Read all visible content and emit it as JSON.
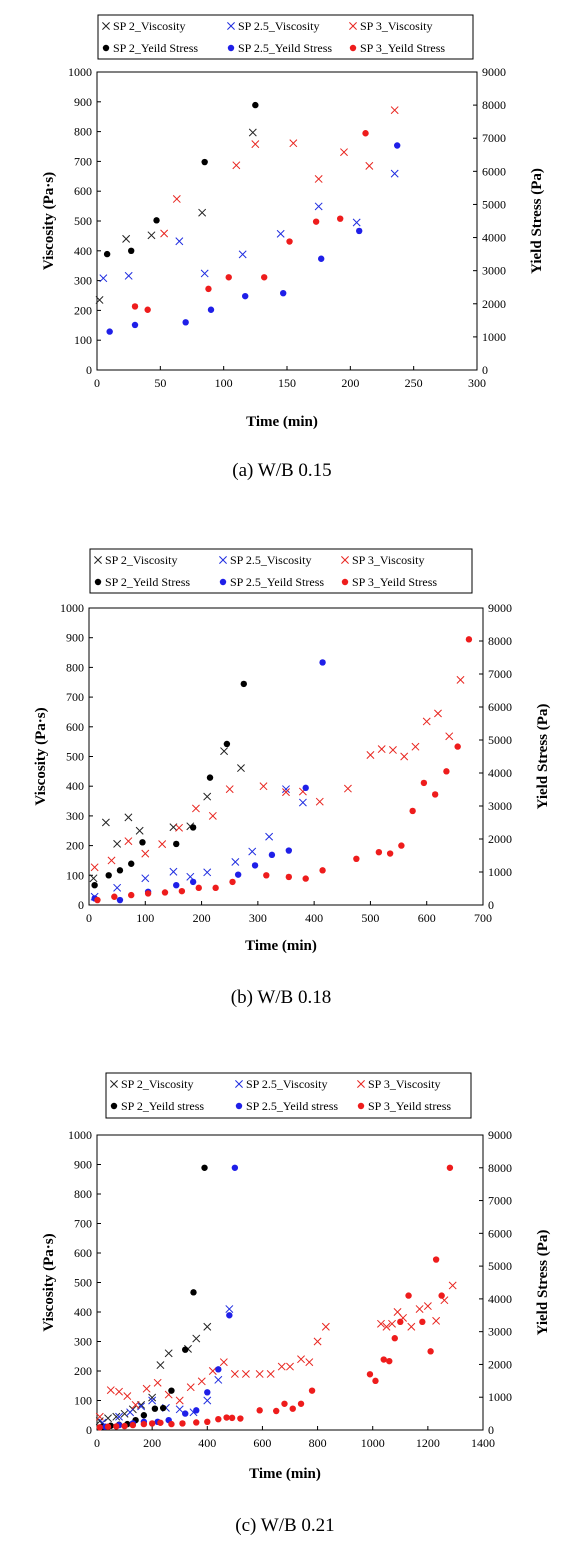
{
  "chart_data": [
    {
      "type": "scatter",
      "caption": "(a) W/B 0.15",
      "xlabel": "Time (min)",
      "ylabel": "Viscosity (Pa·s)",
      "y2label": "Yield Stress (Pa)",
      "xlim": [
        0,
        300
      ],
      "xticks": [
        0,
        50,
        100,
        150,
        200,
        250,
        300
      ],
      "ylim": [
        0,
        1000
      ],
      "yticks": [
        0,
        100,
        200,
        300,
        400,
        500,
        600,
        700,
        800,
        900,
        1000
      ],
      "y2lim": [
        0,
        9000
      ],
      "y2ticks": [
        0,
        1000,
        2000,
        3000,
        4000,
        5000,
        6000,
        7000,
        8000,
        9000
      ],
      "legend": "top",
      "series": [
        {
          "name": "SP 2_Viscosity",
          "marker": "x",
          "color": "#222222",
          "axis": "left",
          "x": [
            2,
            23,
            43,
            83,
            123
          ],
          "y": [
            235,
            440,
            452,
            528,
            797
          ]
        },
        {
          "name": "SP 2.5_Viscosity",
          "marker": "x",
          "color": "#1f2de0",
          "axis": "left",
          "x": [
            5,
            25,
            65,
            85,
            115,
            145,
            175,
            205,
            235
          ],
          "y": [
            308,
            316,
            432,
            324,
            388,
            457,
            549,
            495,
            659
          ]
        },
        {
          "name": "SP 3_Viscosity",
          "marker": "x",
          "color": "#e8251f",
          "axis": "left",
          "x": [
            53,
            63,
            110,
            125,
            155,
            175,
            195,
            215,
            235
          ],
          "y": [
            458,
            574,
            687,
            758,
            761,
            641,
            731,
            685,
            872
          ]
        },
        {
          "name": "SP 2_Yeild Stress",
          "marker": "o",
          "color": "#000000",
          "axis": "right",
          "x": [
            8,
            27,
            47,
            85,
            125
          ],
          "y": [
            3500,
            3600,
            4520,
            6280,
            8000
          ]
        },
        {
          "name": "SP 2.5_Yeild Stress",
          "marker": "o",
          "color": "#1f1fe8",
          "axis": "right",
          "x": [
            10,
            30,
            70,
            90,
            117,
            147,
            177,
            207,
            237
          ],
          "y": [
            1160,
            1360,
            1440,
            1820,
            2230,
            2320,
            3360,
            4200,
            6780
          ]
        },
        {
          "name": "SP 3_Yeild Stress",
          "marker": "o",
          "color": "#ee1c1c",
          "axis": "right",
          "x": [
            30,
            40,
            88,
            104,
            132,
            152,
            173,
            192,
            212
          ],
          "y": [
            1920,
            1820,
            2450,
            2800,
            2800,
            3880,
            4480,
            4570,
            7150
          ]
        }
      ]
    },
    {
      "type": "scatter",
      "caption": "(b) W/B 0.18",
      "xlabel": "Time (min)",
      "ylabel": "Viscosity (Pa·s)",
      "y2label": "Yield Stress (Pa)",
      "xlim": [
        0,
        700
      ],
      "xticks": [
        0,
        100,
        200,
        300,
        400,
        500,
        600,
        700
      ],
      "ylim": [
        0,
        1000
      ],
      "yticks": [
        0,
        100,
        200,
        300,
        400,
        500,
        600,
        700,
        800,
        900,
        1000
      ],
      "y2lim": [
        0,
        9000
      ],
      "y2ticks": [
        0,
        1000,
        2000,
        3000,
        4000,
        5000,
        6000,
        7000,
        8000,
        9000
      ],
      "legend": "top",
      "series": [
        {
          "name": "SP 2_Viscosity",
          "marker": "x",
          "color": "#222222",
          "axis": "left",
          "x": [
            8,
            30,
            50,
            70,
            90,
            150,
            180,
            210,
            240,
            270
          ],
          "y": [
            90,
            278,
            206,
            295,
            250,
            262,
            265,
            365,
            518,
            461
          ]
        },
        {
          "name": "SP 2.5_Viscosity",
          "marker": "x",
          "color": "#1f2de0",
          "axis": "left",
          "x": [
            10,
            50,
            100,
            150,
            180,
            210,
            260,
            290,
            320,
            350,
            380
          ],
          "y": [
            28,
            58,
            90,
            112,
            95,
            110,
            145,
            180,
            230,
            390,
            345
          ]
        },
        {
          "name": "SP 3_Viscosity",
          "marker": "x",
          "color": "#e8251f",
          "axis": "left",
          "x": [
            10,
            40,
            70,
            100,
            130,
            160,
            190,
            220,
            250,
            310,
            350,
            380,
            410,
            460,
            500,
            520,
            540,
            560,
            580,
            600,
            620,
            640,
            660
          ],
          "y": [
            127,
            150,
            215,
            173,
            205,
            260,
            325,
            300,
            390,
            400,
            380,
            382,
            348,
            392,
            505,
            525,
            522,
            500,
            533,
            618,
            645,
            568,
            758
          ]
        },
        {
          "name": "SP 2_Yeild Stress",
          "marker": "o",
          "color": "#000000",
          "axis": "right",
          "x": [
            10,
            35,
            55,
            75,
            95,
            155,
            185,
            215,
            245,
            275
          ],
          "y": [
            600,
            900,
            1050,
            1250,
            1900,
            1850,
            2350,
            3860,
            4880,
            6700
          ]
        },
        {
          "name": "SP 2.5_Yeild Stress",
          "marker": "o",
          "color": "#1f1fe8",
          "axis": "right",
          "x": [
            10,
            55,
            105,
            155,
            185,
            265,
            295,
            325,
            355,
            385,
            415
          ],
          "y": [
            200,
            150,
            400,
            600,
            700,
            920,
            1200,
            1520,
            1650,
            3550,
            7350
          ]
        },
        {
          "name": "SP 3_Yeild Stress",
          "marker": "o",
          "color": "#ee1c1c",
          "axis": "right",
          "x": [
            15,
            45,
            75,
            105,
            135,
            165,
            195,
            225,
            255,
            315,
            355,
            385,
            415,
            475,
            515,
            535,
            555,
            575,
            595,
            615,
            635,
            655,
            675
          ],
          "y": [
            150,
            250,
            300,
            350,
            380,
            420,
            520,
            520,
            700,
            900,
            850,
            800,
            1050,
            1400,
            1600,
            1560,
            1800,
            2850,
            3700,
            3350,
            4050,
            4800,
            8050
          ]
        }
      ]
    },
    {
      "type": "scatter",
      "caption": "(c) W/B 0.21",
      "xlabel": "Time (min)",
      "ylabel": "Viscosity (Pa·s)",
      "y2label": "Yield Stress (Pa)",
      "xlim": [
        0,
        1400
      ],
      "xticks": [
        0,
        200,
        400,
        600,
        800,
        1000,
        1200,
        1400
      ],
      "ylim": [
        0,
        1000
      ],
      "yticks": [
        0,
        100,
        200,
        300,
        400,
        500,
        600,
        700,
        800,
        900,
        1000
      ],
      "y2lim": [
        0,
        9000
      ],
      "y2ticks": [
        0,
        1000,
        2000,
        3000,
        4000,
        5000,
        6000,
        7000,
        8000,
        9000
      ],
      "legend": "top",
      "series": [
        {
          "name": "SP 2_Viscosity",
          "marker": "x",
          "color": "#222222",
          "axis": "left",
          "x": [
            10,
            40,
            70,
            100,
            130,
            160,
            200,
            230,
            260,
            330,
            360,
            400
          ],
          "y": [
            30,
            40,
            45,
            55,
            70,
            85,
            110,
            220,
            260,
            275,
            310,
            350
          ]
        },
        {
          "name": "SP 2.5_Viscosity",
          "marker": "x",
          "color": "#1f2de0",
          "axis": "left",
          "x": [
            20,
            80,
            120,
            160,
            200,
            250,
            300,
            350,
            400,
            440,
            480
          ],
          "y": [
            25,
            45,
            60,
            80,
            100,
            75,
            70,
            60,
            100,
            170,
            410
          ]
        },
        {
          "name": "SP 3_Viscosity",
          "marker": "x",
          "color": "#e8251f",
          "axis": "left",
          "x": [
            10,
            50,
            80,
            110,
            140,
            180,
            220,
            260,
            300,
            340,
            380,
            420,
            460,
            500,
            540,
            590,
            630,
            670,
            700,
            740,
            770,
            800,
            830,
            1030,
            1050,
            1070,
            1090,
            1110,
            1140,
            1170,
            1200,
            1230,
            1260,
            1290
          ],
          "y": [
            45,
            135,
            130,
            115,
            85,
            140,
            160,
            120,
            100,
            145,
            165,
            200,
            230,
            190,
            190,
            190,
            190,
            215,
            215,
            240,
            230,
            300,
            350,
            360,
            350,
            360,
            400,
            380,
            350,
            410,
            420,
            370,
            440,
            490
          ]
        },
        {
          "name": "SP 2_Yeild stress",
          "marker": "o",
          "color": "#000000",
          "axis": "right",
          "x": [
            20,
            50,
            80,
            110,
            140,
            170,
            210,
            240,
            270,
            320,
            350,
            390
          ],
          "y": [
            100,
            130,
            160,
            180,
            300,
            450,
            650,
            670,
            1200,
            2450,
            4200,
            8000
          ]
        },
        {
          "name": "SP 2.5_Yeild stress",
          "marker": "o",
          "color": "#1f1fe8",
          "axis": "right",
          "x": [
            30,
            80,
            130,
            170,
            220,
            260,
            320,
            360,
            400,
            440,
            480,
            500
          ],
          "y": [
            100,
            150,
            200,
            250,
            250,
            300,
            500,
            600,
            1150,
            1850,
            3500,
            8000
          ]
        },
        {
          "name": "SP 3_Yeild stress",
          "marker": "o",
          "color": "#ee1c1c",
          "axis": "right",
          "x": [
            10,
            40,
            70,
            100,
            130,
            170,
            200,
            230,
            270,
            310,
            360,
            400,
            440,
            470,
            490,
            520,
            590,
            650,
            680,
            710,
            740,
            780,
            990,
            1010,
            1040,
            1060,
            1080,
            1100,
            1130,
            1180,
            1210,
            1230,
            1250,
            1280
          ],
          "y": [
            80,
            100,
            110,
            120,
            150,
            180,
            200,
            220,
            180,
            200,
            230,
            250,
            330,
            380,
            370,
            350,
            600,
            580,
            800,
            650,
            800,
            1200,
            1700,
            1500,
            2150,
            2100,
            2800,
            3300,
            4100,
            3300,
            2400,
            5200,
            4100,
            8000
          ]
        }
      ]
    }
  ]
}
